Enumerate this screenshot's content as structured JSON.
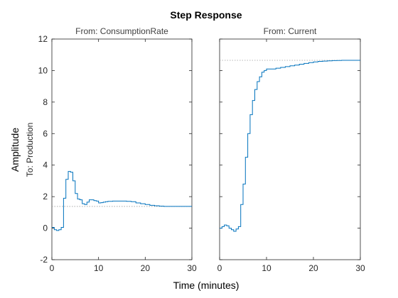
{
  "chart_data": {
    "type": "line",
    "title": "Step Response",
    "xlabel": "Time (minutes)",
    "ylabel": "Amplitude",
    "output_label": "To: Production",
    "xlim": [
      0,
      30
    ],
    "ylim": [
      -2,
      12
    ],
    "xticks": [
      0,
      10,
      20,
      30
    ],
    "yticks": [
      -2,
      0,
      2,
      4,
      6,
      8,
      10,
      12
    ],
    "grid": false,
    "step_plot": true,
    "line_color": "#0072BD",
    "steady_state_color": "#9e9e9e",
    "panels": [
      {
        "title": "From: ConsumptionRate",
        "steady_state": 1.38,
        "series": {
          "x": [
            0,
            0.5,
            1,
            1.5,
            2,
            2.5,
            3,
            3.5,
            4,
            4.5,
            5,
            5.5,
            6,
            6.5,
            7,
            7.5,
            8,
            8.5,
            9,
            9.5,
            10,
            10.5,
            11,
            11.5,
            12,
            13,
            14,
            15,
            16,
            17,
            18,
            19,
            20,
            21,
            22,
            23,
            24,
            25,
            26,
            27,
            28,
            29,
            30
          ],
          "y": [
            0.05,
            -0.1,
            -0.15,
            -0.1,
            0.05,
            1.9,
            3.1,
            3.6,
            3.55,
            3.0,
            2.2,
            1.85,
            1.8,
            1.55,
            1.5,
            1.65,
            1.8,
            1.8,
            1.75,
            1.72,
            1.6,
            1.62,
            1.65,
            1.68,
            1.7,
            1.72,
            1.72,
            1.72,
            1.7,
            1.68,
            1.6,
            1.55,
            1.5,
            1.45,
            1.42,
            1.4,
            1.38,
            1.38,
            1.38,
            1.38,
            1.38,
            1.38,
            1.38
          ]
        }
      },
      {
        "title": "From: Current",
        "steady_state": 10.65,
        "series": {
          "x": [
            0,
            0.5,
            1,
            1.5,
            2,
            2.5,
            3,
            3.5,
            4,
            4.5,
            5,
            5.5,
            6,
            6.5,
            7,
            7.5,
            8,
            8.5,
            9,
            9.5,
            10,
            10.5,
            11,
            12,
            13,
            14,
            15,
            16,
            17,
            18,
            19,
            20,
            21,
            22,
            23,
            24,
            25,
            26,
            27,
            28,
            29,
            30
          ],
          "y": [
            0.0,
            0.1,
            0.2,
            0.15,
            0.0,
            -0.1,
            -0.2,
            -0.05,
            0.1,
            1.5,
            2.8,
            4.5,
            6.0,
            7.2,
            8.1,
            8.8,
            9.3,
            9.6,
            9.9,
            10.0,
            10.1,
            10.1,
            10.1,
            10.15,
            10.2,
            10.25,
            10.3,
            10.35,
            10.4,
            10.45,
            10.5,
            10.55,
            10.58,
            10.6,
            10.62,
            10.63,
            10.64,
            10.65,
            10.65,
            10.65,
            10.65,
            10.65
          ]
        }
      }
    ]
  }
}
